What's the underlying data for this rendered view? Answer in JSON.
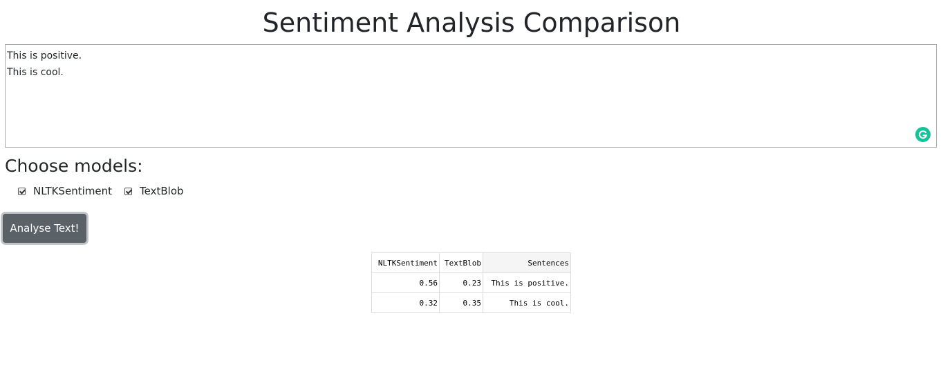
{
  "page": {
    "title": "Sentiment Analysis Comparison"
  },
  "input": {
    "text": "This is positive.\nThis is cool.",
    "grammarly_icon": "grammarly-g-icon"
  },
  "models": {
    "heading": "Choose models:",
    "options": [
      {
        "label": "NLTKSentiment",
        "checked": true
      },
      {
        "label": "TextBlob",
        "checked": true
      }
    ]
  },
  "actions": {
    "analyse_label": "Analyse Text!"
  },
  "results": {
    "columns": [
      "NLTKSentiment",
      "TextBlob",
      "Sentences"
    ],
    "rows": [
      [
        "0.56",
        "0.23",
        "This is positive."
      ],
      [
        "0.32",
        "0.35",
        "This is cool."
      ]
    ]
  },
  "colors": {
    "button_bg": "#5a6268",
    "grammarly": "#15c39a"
  }
}
